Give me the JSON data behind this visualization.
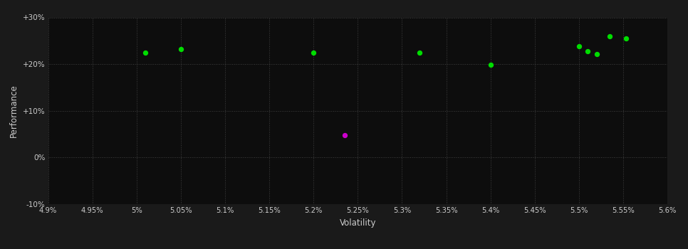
{
  "background_color": "#1a1a1a",
  "plot_bg_color": "#0d0d0d",
  "grid_color": "#404040",
  "text_color": "#cccccc",
  "xlabel": "Volatility",
  "ylabel": "Performance",
  "xlim": [
    4.9,
    5.6
  ],
  "ylim": [
    -10,
    30
  ],
  "xticks": [
    4.9,
    4.95,
    5.0,
    5.05,
    5.1,
    5.15,
    5.2,
    5.25,
    5.3,
    5.35,
    5.4,
    5.45,
    5.5,
    5.55,
    5.6
  ],
  "yticks": [
    -10,
    0,
    10,
    20,
    30
  ],
  "ytick_labels": [
    "-10%",
    "0%",
    "+10%",
    "+20%",
    "+30%"
  ],
  "xtick_labels": [
    "4.9%",
    "4.95%",
    "5%",
    "5.05%",
    "5.1%",
    "5.15%",
    "5.2%",
    "5.25%",
    "5.3%",
    "5.35%",
    "5.4%",
    "5.45%",
    "5.5%",
    "5.55%",
    "5.6%"
  ],
  "green_points": [
    [
      5.01,
      22.5
    ],
    [
      5.05,
      23.2
    ],
    [
      5.2,
      22.5
    ],
    [
      5.32,
      22.5
    ],
    [
      5.4,
      19.8
    ],
    [
      5.5,
      23.8
    ],
    [
      5.51,
      22.8
    ],
    [
      5.52,
      22.2
    ],
    [
      5.535,
      26.0
    ],
    [
      5.553,
      25.5
    ]
  ],
  "magenta_points": [
    [
      5.235,
      4.8
    ]
  ],
  "green_color": "#00dd00",
  "magenta_color": "#cc00cc",
  "marker_size": 28
}
